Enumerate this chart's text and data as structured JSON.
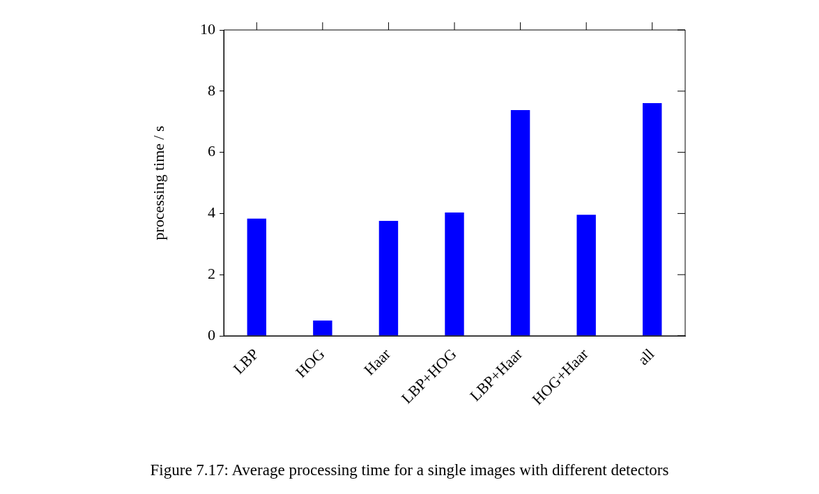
{
  "chart_data": {
    "type": "bar",
    "ylabel": "processing time / s",
    "categories": [
      "LBP",
      "HOG",
      "Haar",
      "LBP+HOG",
      "LBP+Haar",
      "HOG+Haar",
      "all"
    ],
    "values": [
      3.83,
      0.5,
      3.76,
      4.03,
      7.38,
      3.96,
      7.61
    ],
    "color": "#0000ff",
    "ylim": [
      0,
      10
    ],
    "yticks": [
      0,
      2,
      4,
      6,
      8,
      10
    ],
    "grid": false,
    "annotations": [
      "Figure 7.17: Average processing time for a single images with different detectors"
    ]
  }
}
